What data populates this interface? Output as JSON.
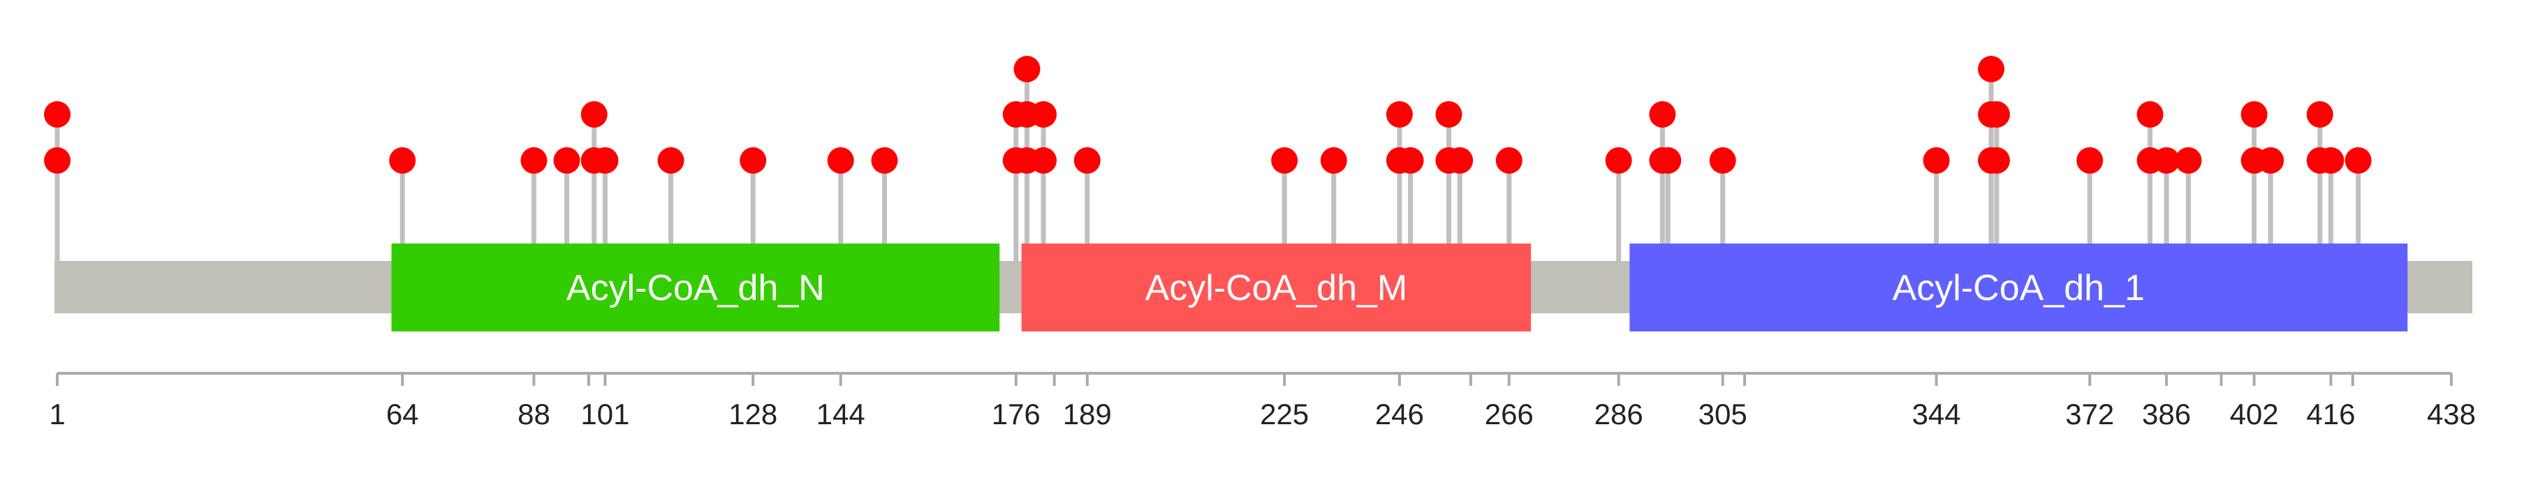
{
  "protein": {
    "length": 438,
    "backbone_color": "#c0c0b8"
  },
  "domains": [
    {
      "name": "Acyl-CoA_dh_N",
      "start": 62,
      "end": 173,
      "color": "#33cc00"
    },
    {
      "name": "Acyl-CoA_dh_M",
      "start": 177,
      "end": 270,
      "color": "#ff5555"
    },
    {
      "name": "Acyl-CoA_dh_1",
      "start": 288,
      "end": 430,
      "color": "#6060ff"
    }
  ],
  "axis": {
    "ticks": [
      1,
      64,
      88,
      101,
      128,
      144,
      176,
      189,
      225,
      246,
      266,
      286,
      305,
      344,
      372,
      386,
      402,
      416,
      438
    ],
    "minor_ticks": [
      98,
      183,
      259,
      309,
      396,
      420
    ]
  },
  "mutations": {
    "lollipop_color": "#ff0000",
    "stem_color": "#c0c0c0",
    "sites": [
      {
        "position": 1,
        "count": 2
      },
      {
        "position": 64,
        "count": 1
      },
      {
        "position": 88,
        "count": 1
      },
      {
        "position": 94,
        "count": 1
      },
      {
        "position": 99,
        "count": 2
      },
      {
        "position": 101,
        "count": 1
      },
      {
        "position": 113,
        "count": 1
      },
      {
        "position": 128,
        "count": 1
      },
      {
        "position": 144,
        "count": 1
      },
      {
        "position": 152,
        "count": 1
      },
      {
        "position": 176,
        "count": 2
      },
      {
        "position": 178,
        "count": 3
      },
      {
        "position": 181,
        "count": 2
      },
      {
        "position": 189,
        "count": 1
      },
      {
        "position": 225,
        "count": 1
      },
      {
        "position": 234,
        "count": 1
      },
      {
        "position": 246,
        "count": 2
      },
      {
        "position": 248,
        "count": 1
      },
      {
        "position": 255,
        "count": 2
      },
      {
        "position": 257,
        "count": 1
      },
      {
        "position": 266,
        "count": 1
      },
      {
        "position": 286,
        "count": 1
      },
      {
        "position": 294,
        "count": 2
      },
      {
        "position": 295,
        "count": 1
      },
      {
        "position": 305,
        "count": 1
      },
      {
        "position": 344,
        "count": 1
      },
      {
        "position": 354,
        "count": 3
      },
      {
        "position": 355,
        "count": 2
      },
      {
        "position": 372,
        "count": 1
      },
      {
        "position": 383,
        "count": 2
      },
      {
        "position": 386,
        "count": 1
      },
      {
        "position": 390,
        "count": 1
      },
      {
        "position": 402,
        "count": 2
      },
      {
        "position": 405,
        "count": 1
      },
      {
        "position": 414,
        "count": 2
      },
      {
        "position": 416,
        "count": 1
      },
      {
        "position": 421,
        "count": 1
      }
    ]
  }
}
